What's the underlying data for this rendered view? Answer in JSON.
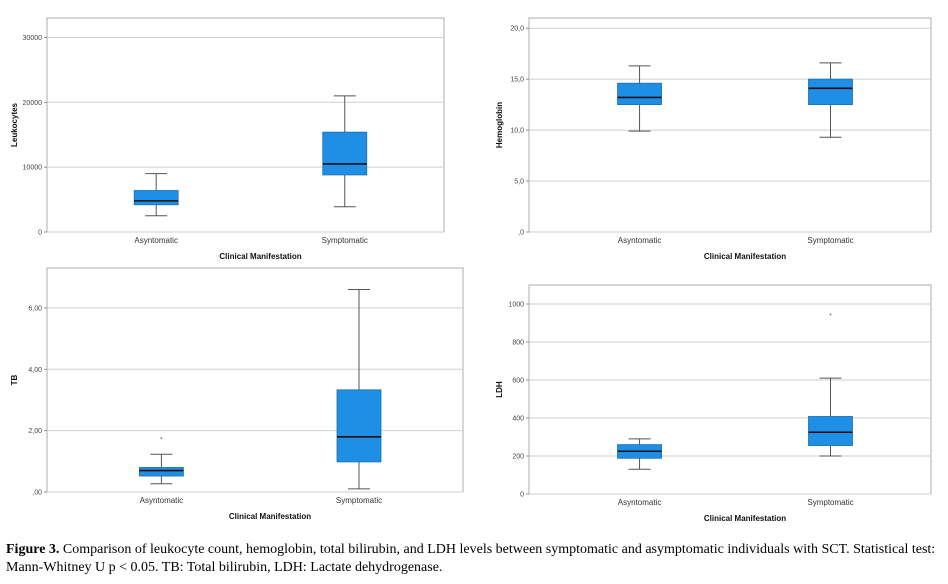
{
  "caption": {
    "label": "Figure 3.",
    "text": " Comparison of leukocyte count, hemoglobin, total bilirubin, and LDH levels between symptomatic and asymptomatic individuals with SCT. Statistical test: Mann-Whitney U p < 0.05. TB: Total bilirubin, LDH: Lactate dehydrogenase."
  },
  "colors": {
    "box_fill": "#1f8fe5",
    "box_stroke": "#1c6fb0",
    "median": "#111111",
    "grid": "#cfcfcf",
    "whisker": "#555555"
  },
  "chart_data": [
    {
      "type": "boxplot",
      "ylabel": "Leukocytes",
      "xlabel": "Clinical Manifestation",
      "categories": [
        "Asyntomatic",
        "Symptomatic"
      ],
      "ylim": [
        0,
        33000
      ],
      "yticks": [
        0,
        10000,
        20000,
        30000
      ],
      "ytick_labels": [
        "0",
        "10000",
        "20000",
        "30000"
      ],
      "boxes": [
        {
          "min": 2500,
          "q1": 4200,
          "median": 4800,
          "q3": 6400,
          "max": 9000,
          "outliers": []
        },
        {
          "min": 3900,
          "q1": 8800,
          "median": 10500,
          "q3": 15400,
          "max": 21000,
          "outliers": []
        }
      ]
    },
    {
      "type": "boxplot",
      "ylabel": "Hemoglobin",
      "xlabel": "Clinical Manifestation",
      "categories": [
        "Asyntomatic",
        "Symptomatic"
      ],
      "ylim": [
        0,
        21
      ],
      "yticks": [
        0,
        5,
        10,
        15,
        20
      ],
      "ytick_labels": [
        ",0",
        "5,0",
        "10,0",
        "15,0",
        "20,0"
      ],
      "boxes": [
        {
          "min": 9.9,
          "q1": 12.5,
          "median": 13.2,
          "q3": 14.6,
          "max": 16.3,
          "outliers": []
        },
        {
          "min": 9.3,
          "q1": 12.5,
          "median": 14.1,
          "q3": 15.0,
          "max": 16.6,
          "outliers": []
        }
      ]
    },
    {
      "type": "boxplot",
      "ylabel": "TB",
      "xlabel": "Clinical Manifestation",
      "categories": [
        "Asyntomatic",
        "Symptomatic"
      ],
      "ylim": [
        0,
        7.3
      ],
      "yticks": [
        0,
        2,
        4,
        6
      ],
      "ytick_labels": [
        ",00",
        "2,00",
        "4,00",
        "6,00"
      ],
      "boxes": [
        {
          "min": 0.27,
          "q1": 0.52,
          "median": 0.7,
          "q3": 0.8,
          "max": 1.23,
          "outliers": [
            1.75
          ]
        },
        {
          "min": 0.1,
          "q1": 0.98,
          "median": 1.8,
          "q3": 3.33,
          "max": 6.6,
          "outliers": []
        }
      ]
    },
    {
      "type": "boxplot",
      "ylabel": "LDH",
      "xlabel": "Clinical Manifestation",
      "categories": [
        "Asyntomatic",
        "Symptomatic"
      ],
      "ylim": [
        0,
        1100
      ],
      "yticks": [
        0,
        200,
        400,
        600,
        800,
        1000
      ],
      "ytick_labels": [
        "0",
        "200",
        "400",
        "600",
        "800",
        "1000"
      ],
      "boxes": [
        {
          "min": 130,
          "q1": 188,
          "median": 225,
          "q3": 260,
          "max": 290,
          "outliers": []
        },
        {
          "min": 200,
          "q1": 255,
          "median": 325,
          "q3": 408,
          "max": 610,
          "outliers": [
            945
          ]
        }
      ]
    }
  ]
}
